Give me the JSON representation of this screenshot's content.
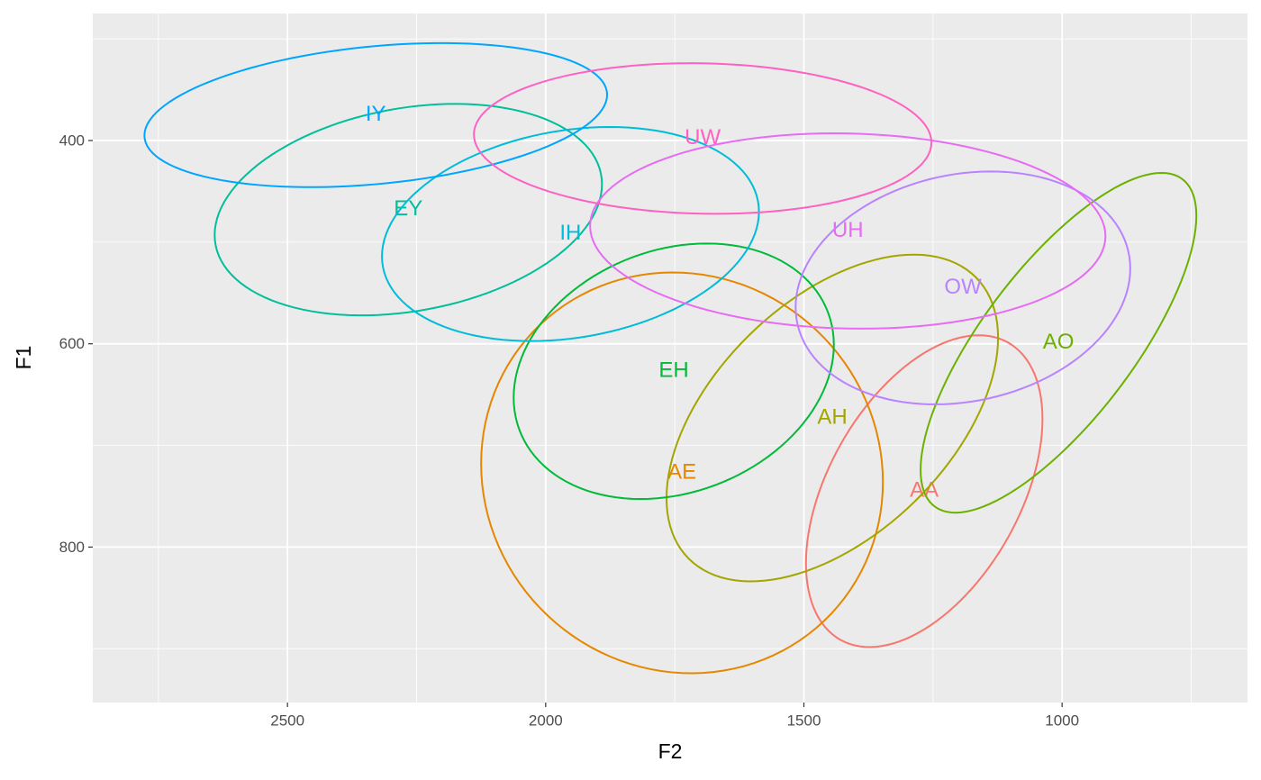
{
  "chart_data": {
    "type": "ellipse",
    "x_label": "F2",
    "y_label": "F1",
    "xlim": [
      2877,
      641
    ],
    "ylim": [
      953,
      275
    ],
    "xticks": [
      2500,
      2000,
      1500,
      1000
    ],
    "yticks": [
      400,
      600,
      800
    ],
    "xminor": [
      2750,
      2250,
      1750,
      1250,
      750
    ],
    "yminor": [
      300,
      500,
      700,
      900
    ],
    "grid": true,
    "series": [
      {
        "name": "AA",
        "color": "#F8766D",
        "center": [
          1267,
          745
        ],
        "axis1": [
          -229,
          -71
        ],
        "axis2": [
          0,
          -136
        ]
      },
      {
        "name": "AE",
        "color": "#E58700",
        "center": [
          1736,
          727
        ],
        "axis1": [
          -389,
          9
        ],
        "axis2": [
          0,
          -197
        ]
      },
      {
        "name": "AH",
        "color": "#A3A500",
        "center": [
          1445,
          673
        ],
        "axis1": [
          -321,
          -79
        ],
        "axis2": [
          0,
          -140
        ]
      },
      {
        "name": "AO",
        "color": "#6BB100",
        "center": [
          1007,
          599
        ],
        "axis1": [
          -267,
          -125
        ],
        "axis2": [
          0,
          -111
        ]
      },
      {
        "name": "EH",
        "color": "#00BA38",
        "center": [
          1752,
          627
        ],
        "axis1": [
          -310,
          -26
        ],
        "axis2": [
          0,
          -123
        ]
      },
      {
        "name": "EY",
        "color": "#00BF9A",
        "center": [
          2266,
          468
        ],
        "axis1": [
          -375,
          -25
        ],
        "axis2": [
          0,
          -101
        ]
      },
      {
        "name": "IH",
        "color": "#00BCD8",
        "center": [
          1952,
          492
        ],
        "axis1": [
          -365,
          -22
        ],
        "axis2": [
          0,
          -103
        ]
      },
      {
        "name": "IY",
        "color": "#00A5FF",
        "center": [
          2329,
          375
        ],
        "axis1": [
          -448,
          -20
        ],
        "axis2": [
          0,
          -68
        ]
      },
      {
        "name": "OW",
        "color": "#B983FF",
        "center": [
          1192,
          545
        ],
        "axis1": [
          -324,
          -19
        ],
        "axis2": [
          0,
          -113
        ]
      },
      {
        "name": "UH",
        "color": "#E76BF3",
        "center": [
          1415,
          489
        ],
        "axis1": [
          -499,
          5
        ],
        "axis2": [
          0,
          -96
        ]
      },
      {
        "name": "UW",
        "color": "#FF61C3",
        "center": [
          1696,
          398
        ],
        "axis1": [
          -443,
          4
        ],
        "axis2": [
          0,
          -74
        ]
      }
    ]
  }
}
